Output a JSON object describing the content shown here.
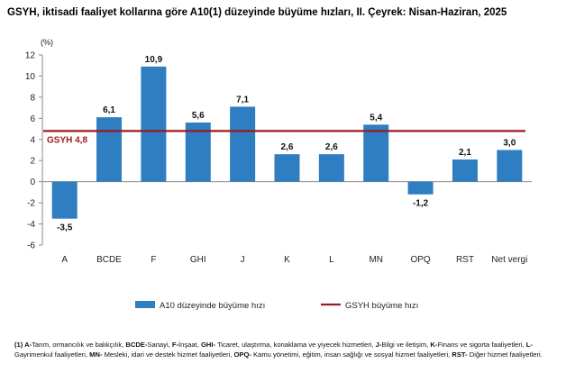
{
  "title": "GSYH, iktisadi faaliyet kollarına göre A10(1) düzeyinde büyüme hızları, II. Çeyrek: Nisan-Haziran, 2025",
  "chart_data": {
    "type": "bar",
    "unit_label": "(%)",
    "categories": [
      "A",
      "BCDE",
      "F",
      "GHI",
      "J",
      "K",
      "L",
      "MN",
      "OPQ",
      "RST",
      "Net vergi"
    ],
    "value_labels": [
      "-3,5",
      "6,1",
      "10,9",
      "5,6",
      "7,1",
      "2,6",
      "2,6",
      "5,4",
      "-1,2",
      "2,1",
      "3,0"
    ],
    "series": [
      {
        "name": "A10 düzeyinde büyüme hızı",
        "type": "bar",
        "color": "#2e7ec1",
        "values": [
          -3.5,
          6.1,
          10.9,
          5.6,
          7.1,
          2.6,
          2.6,
          5.4,
          -1.2,
          2.1,
          3.0
        ]
      },
      {
        "name": "GSYH büyüme hızı",
        "type": "line",
        "color": "#9b1c20",
        "value": 4.8
      }
    ],
    "reference_line_label": "GSYH 4,8",
    "ylim": [
      -6,
      12
    ],
    "yticks": [
      -6,
      -4,
      -2,
      0,
      2,
      4,
      6,
      8,
      10,
      12
    ],
    "ytick_labels": [
      "-6",
      "-4",
      "-2",
      "0",
      "2",
      "4",
      "6",
      "8",
      "10",
      "12"
    ],
    "grid": false,
    "legend_position": "bottom"
  },
  "footnote": [
    {
      "key": "(1)",
      "text": ""
    },
    {
      "key": "A-",
      "text": "Tarım, ormancılık ve balıkçılık, "
    },
    {
      "key": "BCDE-",
      "text": "Sanayi, "
    },
    {
      "key": "F-",
      "text": "İnşaat, "
    },
    {
      "key": "GHI-",
      "text": " Ticaret, ulaştırma, konaklama ve yiyecek hizmetleri, "
    },
    {
      "key": "J-",
      "text": "Bilgi ve iletişim, "
    },
    {
      "key": "K-",
      "text": "Finans ve sigorta faaliyetleri, "
    },
    {
      "key": "L-",
      "text": "Gayrimenkul faaliyetleri, "
    },
    {
      "key": "MN-",
      "text": " Mesleki, idari ve destek hizmet faaliyetleri, "
    },
    {
      "key": "OPQ-",
      "text": " Kamu yönetimi, eğitim, insan sağlığı ve sosyal hizmet faaliyetleri, "
    },
    {
      "key": "RST-",
      "text": " Diğer hizmet faaliyetleri."
    }
  ]
}
